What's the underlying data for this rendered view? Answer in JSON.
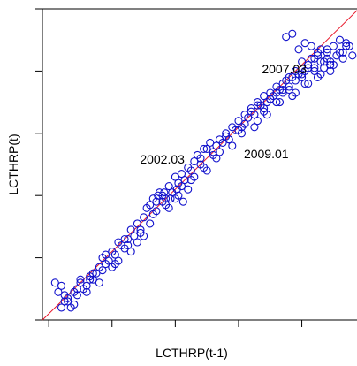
{
  "chart_data": {
    "type": "scatter",
    "title": "",
    "xlabel": "LCTHRP(t-1)",
    "ylabel": "LCTHRP(t)",
    "xlim": [
      0,
      1
    ],
    "ylim": [
      0,
      1
    ],
    "x_ticks": [
      0.02,
      0.22,
      0.42,
      0.62,
      0.82,
      1.0
    ],
    "y_ticks": [
      0.0,
      0.2,
      0.4,
      0.6,
      0.8,
      1.0
    ],
    "tick_labels_shown": false,
    "grid": false,
    "legend": "none",
    "reference_line": {
      "label": "",
      "slope": 1,
      "intercept": 0,
      "color": "#e8192c"
    },
    "point_color": "#1111cc",
    "annotations": [
      {
        "text": "2007.03",
        "x": 0.77,
        "y": 0.77
      },
      {
        "text": "2002.03",
        "x": 0.39,
        "y": 0.48
      },
      {
        "text": "2009.01",
        "x": 0.62,
        "y": 0.56
      }
    ],
    "x": [
      0.04,
      0.05,
      0.06,
      0.07,
      0.08,
      0.09,
      0.1,
      0.11,
      0.12,
      0.13,
      0.14,
      0.15,
      0.16,
      0.17,
      0.18,
      0.19,
      0.2,
      0.21,
      0.22,
      0.23,
      0.24,
      0.25,
      0.26,
      0.27,
      0.28,
      0.29,
      0.3,
      0.31,
      0.32,
      0.33,
      0.34,
      0.35,
      0.36,
      0.37,
      0.38,
      0.39,
      0.4,
      0.41,
      0.42,
      0.43,
      0.44,
      0.45,
      0.46,
      0.47,
      0.48,
      0.49,
      0.5,
      0.51,
      0.52,
      0.53,
      0.54,
      0.55,
      0.56,
      0.57,
      0.58,
      0.59,
      0.6,
      0.61,
      0.62,
      0.63,
      0.64,
      0.65,
      0.66,
      0.67,
      0.68,
      0.69,
      0.7,
      0.71,
      0.72,
      0.73,
      0.74,
      0.75,
      0.76,
      0.77,
      0.78,
      0.79,
      0.8,
      0.81,
      0.82,
      0.83,
      0.84,
      0.85,
      0.86,
      0.87,
      0.88,
      0.89,
      0.9,
      0.91,
      0.92,
      0.93,
      0.94,
      0.95,
      0.96,
      0.97,
      0.98,
      0.06,
      0.08,
      0.1,
      0.12,
      0.14,
      0.16,
      0.18,
      0.2,
      0.22,
      0.24,
      0.26,
      0.28,
      0.3,
      0.32,
      0.34,
      0.36,
      0.38,
      0.4,
      0.42,
      0.44,
      0.46,
      0.48,
      0.5,
      0.52,
      0.54,
      0.56,
      0.58,
      0.6,
      0.62,
      0.64,
      0.66,
      0.68,
      0.7,
      0.72,
      0.74,
      0.76,
      0.78,
      0.8,
      0.82,
      0.84,
      0.86,
      0.88,
      0.9,
      0.92,
      0.94,
      0.96,
      0.07,
      0.11,
      0.15,
      0.19,
      0.23,
      0.27,
      0.31,
      0.35,
      0.39,
      0.43,
      0.47,
      0.51,
      0.55,
      0.59,
      0.63,
      0.67,
      0.71,
      0.75,
      0.79,
      0.83,
      0.87,
      0.91,
      0.95,
      0.365,
      0.385,
      0.405,
      0.425,
      0.445,
      0.68,
      0.7,
      0.72,
      0.74,
      0.76,
      0.78,
      0.8,
      0.82,
      0.84,
      0.86,
      0.88,
      0.9,
      0.85,
      0.87,
      0.89,
      0.91,
      0.83,
      0.81,
      0.79,
      0.77
    ],
    "y": [
      0.12,
      0.09,
      0.04,
      0.08,
      0.06,
      0.04,
      0.09,
      0.08,
      0.12,
      0.1,
      0.11,
      0.14,
      0.13,
      0.15,
      0.17,
      0.16,
      0.18,
      0.19,
      0.22,
      0.21,
      0.25,
      0.24,
      0.26,
      0.24,
      0.29,
      0.27,
      0.31,
      0.28,
      0.33,
      0.36,
      0.37,
      0.39,
      0.38,
      0.41,
      0.4,
      0.39,
      0.43,
      0.41,
      0.46,
      0.44,
      0.47,
      0.45,
      0.49,
      0.48,
      0.51,
      0.53,
      0.52,
      0.55,
      0.55,
      0.57,
      0.54,
      0.56,
      0.58,
      0.57,
      0.6,
      0.58,
      0.62,
      0.61,
      0.64,
      0.62,
      0.66,
      0.65,
      0.68,
      0.66,
      0.7,
      0.69,
      0.72,
      0.7,
      0.73,
      0.72,
      0.75,
      0.74,
      0.76,
      0.77,
      0.75,
      0.78,
      0.8,
      0.79,
      0.83,
      0.8,
      0.82,
      0.84,
      0.81,
      0.85,
      0.87,
      0.83,
      0.86,
      0.82,
      0.88,
      0.85,
      0.86,
      0.84,
      0.89,
      0.88,
      0.85,
      0.11,
      0.07,
      0.05,
      0.13,
      0.09,
      0.15,
      0.12,
      0.21,
      0.17,
      0.19,
      0.23,
      0.22,
      0.25,
      0.27,
      0.31,
      0.35,
      0.38,
      0.36,
      0.39,
      0.43,
      0.42,
      0.46,
      0.5,
      0.48,
      0.53,
      0.54,
      0.59,
      0.56,
      0.61,
      0.63,
      0.67,
      0.64,
      0.68,
      0.71,
      0.73,
      0.74,
      0.78,
      0.77,
      0.79,
      0.81,
      0.84,
      0.83,
      0.87,
      0.82,
      0.9,
      0.88,
      0.06,
      0.1,
      0.13,
      0.2,
      0.18,
      0.26,
      0.29,
      0.34,
      0.37,
      0.4,
      0.45,
      0.49,
      0.52,
      0.58,
      0.6,
      0.62,
      0.66,
      0.7,
      0.72,
      0.76,
      0.78,
      0.8,
      0.86,
      0.4,
      0.41,
      0.39,
      0.42,
      0.38,
      0.69,
      0.67,
      0.71,
      0.7,
      0.73,
      0.74,
      0.73,
      0.78,
      0.76,
      0.8,
      0.79,
      0.84,
      0.88,
      0.86,
      0.81,
      0.83,
      0.89,
      0.87,
      0.92,
      0.91
    ]
  }
}
